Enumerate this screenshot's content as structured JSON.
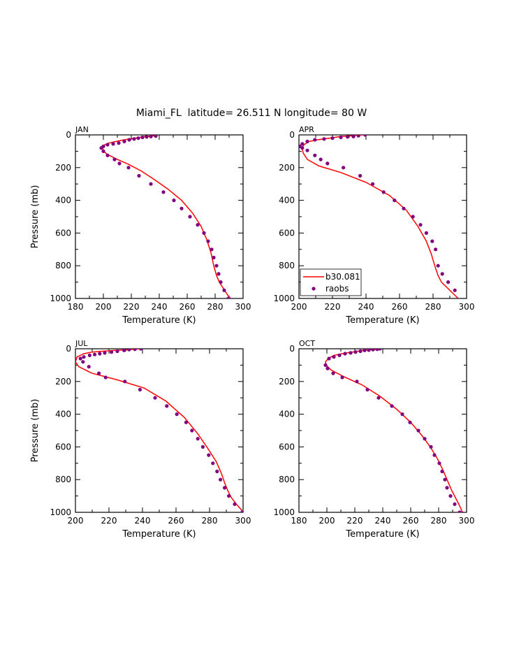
{
  "title": "Miami_FL  latitude= 26.511 N longitude= 80 W",
  "colors": {
    "model": "#ff0000",
    "obs": "#800080"
  },
  "chart_data": [
    {
      "type": "line",
      "panel": "JAN",
      "xlabel": "Temperature (K)",
      "ylabel": "Pressure (mb)",
      "xlim": [
        180,
        300
      ],
      "ylim": [
        1000,
        0
      ],
      "xticks": [
        180,
        200,
        220,
        240,
        260,
        280,
        300
      ],
      "yticks": [
        0,
        200,
        400,
        600,
        800,
        1000
      ],
      "show_ylabel": true,
      "legend": null,
      "model": {
        "name": "b30.081",
        "T": [
          237,
          230,
          222,
          215,
          209,
          204,
          201,
          199.5,
          200,
          203,
          210,
          218,
          227,
          236,
          246,
          256,
          264,
          270,
          274,
          277,
          279,
          281,
          283,
          286,
          289,
          291
        ],
        "P": [
          5,
          10,
          20,
          30,
          40,
          50,
          60,
          80,
          100,
          120,
          150,
          180,
          220,
          270,
          330,
          400,
          480,
          560,
          640,
          720,
          800,
          860,
          900,
          940,
          980,
          1000
        ]
      },
      "obs": {
        "name": "raobs",
        "T": [
          237.5,
          234,
          231,
          228,
          225,
          222,
          218.5,
          215,
          211,
          207,
          203,
          200,
          198.5,
          200,
          203,
          208,
          211.5,
          218,
          225.5,
          234,
          243,
          250.5,
          256,
          262,
          267.5,
          272,
          275,
          277.5,
          279,
          281,
          282.5,
          284,
          286.5,
          289.5,
          291.5
        ],
        "P": [
          7,
          10,
          12,
          15,
          20,
          25,
          30,
          40,
          50,
          55,
          60,
          70,
          80,
          100,
          125,
          150,
          175,
          200,
          250,
          300,
          350,
          400,
          450,
          500,
          550,
          600,
          650,
          700,
          750,
          800,
          850,
          900,
          950,
          1000,
          1010
        ]
      }
    },
    {
      "type": "line",
      "panel": "APR",
      "xlabel": "Temperature (K)",
      "ylabel": "",
      "xlim": [
        200,
        300
      ],
      "ylim": [
        1000,
        0
      ],
      "xticks": [
        200,
        220,
        240,
        260,
        280,
        300
      ],
      "yticks": [
        0,
        200,
        400,
        600,
        800,
        1000
      ],
      "show_ylabel": false,
      "legend": "bottom-left",
      "model": {
        "name": "b30.081",
        "T": [
          238,
          232,
          225,
          218,
          211,
          206,
          203,
          202,
          202.5,
          205,
          212,
          225,
          240,
          254,
          264,
          271,
          276,
          279,
          281,
          283,
          285,
          289,
          292,
          295
        ],
        "P": [
          0,
          5,
          10,
          20,
          30,
          40,
          60,
          80,
          110,
          150,
          190,
          230,
          290,
          370,
          460,
          560,
          650,
          730,
          800,
          860,
          900,
          940,
          970,
          1000
        ]
      },
      "obs": {
        "name": "raobs",
        "T": [
          239.5,
          235.5,
          232.5,
          229,
          225,
          220,
          215,
          209.5,
          205,
          202,
          200.5,
          202,
          205,
          209.5,
          213,
          217,
          226.5,
          236.5,
          244,
          250.5,
          257,
          262.5,
          268,
          272.5,
          276,
          279.5,
          281.5,
          283,
          285.5,
          289,
          293
        ],
        "P": [
          0,
          5,
          10,
          12,
          15,
          20,
          25,
          30,
          40,
          55,
          70,
          80,
          95,
          125,
          150,
          175,
          200,
          250,
          300,
          350,
          400,
          450,
          500,
          550,
          600,
          650,
          700,
          800,
          850,
          900,
          950
        ]
      }
    },
    {
      "type": "line",
      "panel": "JUL",
      "xlabel": "Temperature (K)",
      "ylabel": "Pressure (mb)",
      "xlim": [
        200,
        300
      ],
      "ylim": [
        1000,
        0
      ],
      "xticks": [
        200,
        220,
        240,
        260,
        280,
        300
      ],
      "yticks": [
        0,
        200,
        400,
        600,
        800,
        1000
      ],
      "show_ylabel": true,
      "legend": null,
      "model": {
        "name": "b30.081",
        "T": [
          238,
          232,
          224,
          216,
          210,
          205,
          201,
          200,
          202,
          210,
          225,
          241,
          254,
          265,
          273,
          279,
          284,
          287,
          289,
          291,
          293,
          296,
          299,
          300
        ],
        "P": [
          0,
          5,
          10,
          15,
          20,
          30,
          50,
          80,
          110,
          150,
          190,
          240,
          320,
          420,
          520,
          610,
          690,
          760,
          820,
          870,
          910,
          950,
          985,
          1000
        ]
      },
      "obs": {
        "name": "raobs",
        "T": [
          239,
          235.5,
          232,
          229,
          225,
          221.5,
          217.5,
          214.5,
          211.5,
          208.5,
          205,
          203,
          204.5,
          208,
          214,
          218,
          229.5,
          238.5,
          247.5,
          254.5,
          260.5,
          266,
          269.5,
          273,
          276,
          279.5,
          282,
          284.5,
          286.5,
          289,
          291.5,
          295,
          299.5
        ],
        "P": [
          0,
          3,
          5,
          10,
          15,
          20,
          25,
          30,
          35,
          40,
          50,
          60,
          80,
          110,
          150,
          175,
          200,
          250,
          300,
          350,
          400,
          450,
          500,
          550,
          600,
          650,
          700,
          750,
          800,
          850,
          900,
          950,
          1000
        ]
      }
    },
    {
      "type": "line",
      "panel": "OCT",
      "xlabel": "Temperature (K)",
      "ylabel": "",
      "xlim": [
        180,
        300
      ],
      "ylim": [
        1000,
        0
      ],
      "xticks": [
        180,
        200,
        220,
        240,
        260,
        280,
        300
      ],
      "yticks": [
        0,
        200,
        400,
        600,
        800,
        1000
      ],
      "show_ylabel": false,
      "legend": null,
      "model": {
        "name": "b30.081",
        "T": [
          238,
          233,
          226,
          218,
          211,
          205,
          201,
          199,
          199.5,
          203,
          212,
          225,
          238,
          250,
          260,
          268,
          274,
          279,
          283,
          286,
          289,
          292,
          295,
          297
        ],
        "P": [
          0,
          5,
          10,
          20,
          30,
          40,
          60,
          80,
          100,
          130,
          170,
          220,
          290,
          370,
          450,
          530,
          600,
          670,
          740,
          800,
          860,
          910,
          960,
          1000
        ]
      },
      "obs": {
        "name": "raobs",
        "T": [
          238,
          236,
          233,
          230,
          227,
          224,
          220.5,
          217,
          213,
          209,
          205,
          201.5,
          199,
          200.5,
          204.5,
          211,
          221.5,
          229,
          237,
          246.5,
          254,
          259.5,
          265.5,
          270,
          274.5,
          277,
          280.5,
          282.5,
          284.5,
          286,
          288.5,
          291.5,
          295,
          297
        ],
        "P": [
          0,
          3,
          5,
          8,
          10,
          15,
          20,
          25,
          30,
          40,
          50,
          60,
          100,
          120,
          150,
          175,
          200,
          250,
          300,
          350,
          400,
          450,
          500,
          550,
          600,
          650,
          700,
          750,
          800,
          850,
          900,
          950,
          1000,
          1005
        ]
      }
    }
  ]
}
